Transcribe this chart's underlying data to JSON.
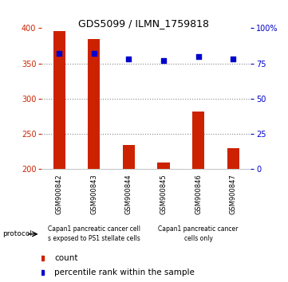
{
  "title": "GDS5099 / ILMN_1759818",
  "samples": [
    "GSM900842",
    "GSM900843",
    "GSM900844",
    "GSM900845",
    "GSM900846",
    "GSM900847"
  ],
  "counts": [
    396,
    385,
    234,
    209,
    282,
    230
  ],
  "percentile_ranks": [
    82,
    82,
    78,
    77,
    80,
    78
  ],
  "ylim_left": [
    200,
    400
  ],
  "ylim_right": [
    0,
    100
  ],
  "yticks_left": [
    200,
    250,
    300,
    350,
    400
  ],
  "yticks_right": [
    0,
    25,
    50,
    75,
    100
  ],
  "bar_color": "#cc2200",
  "dot_color": "#0000cc",
  "grid_dotted_color": "#888888",
  "bg_plot": "#ffffff",
  "bg_sample_row": "#cccccc",
  "bg_protocol": "#77dd77",
  "protocol_group1_text": "Capan1 pancreatic cancer cell\ns exposed to PS1 stellate cells",
  "protocol_group2_text": "Capan1 pancreatic cancer\ncells only",
  "legend_count_label": "count",
  "legend_percentile_label": "percentile rank within the sample",
  "left_tick_color": "#cc2200",
  "right_tick_color": "#0000cc",
  "title_fontsize": 9,
  "tick_fontsize": 7,
  "sample_fontsize": 6,
  "protocol_fontsize": 5.5,
  "legend_fontsize": 7.5
}
